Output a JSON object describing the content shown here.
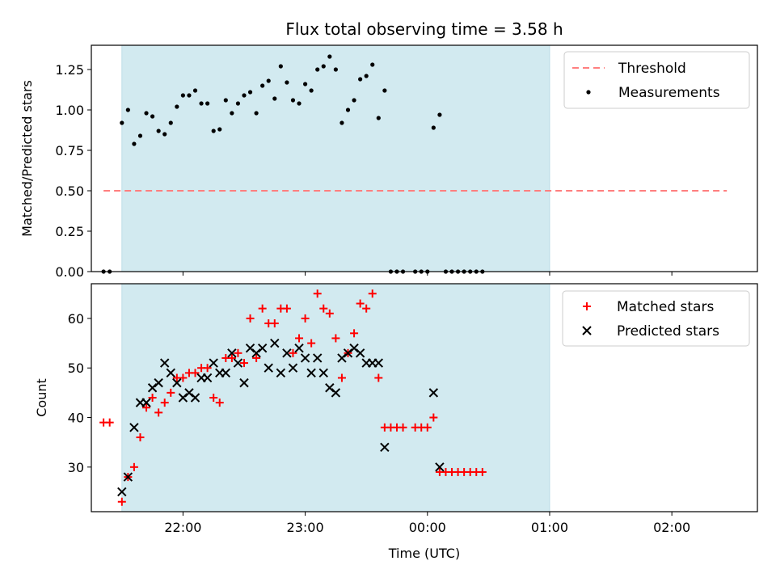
{
  "title": "Flux total observing time = 3.58 h",
  "colors": {
    "shade": "#d2eaf0",
    "threshold": "#ff7f7f",
    "measurement": "#000000",
    "matched": "#ff0000",
    "predicted": "#000000"
  },
  "chart_data": [
    {
      "type": "scatter",
      "panel": "top",
      "title": "Flux total observing time = 3.58 h",
      "xlabel": "",
      "ylabel": "Matched/Predicted stars",
      "x_unit": "time (UTC)",
      "xlim": [
        "21:15",
        "02:42"
      ],
      "ylim": [
        0,
        1.4
      ],
      "xticks": [
        "22:00",
        "23:00",
        "00:00",
        "01:00",
        "02:00"
      ],
      "yticks": [
        "0.00",
        "0.25",
        "0.50",
        "0.75",
        "1.00",
        "1.25"
      ],
      "shaded_interval": [
        "21:30",
        "01:00"
      ],
      "legend_position": "top-right",
      "threshold": {
        "name": "Threshold",
        "value": 0.5,
        "x": [
          "21:21",
          "02:27"
        ]
      },
      "series": [
        {
          "name": "Measurements",
          "points": [
            [
              "21:21",
              0
            ],
            [
              "21:24",
              0
            ],
            [
              "21:30",
              0.92
            ],
            [
              "21:33",
              1.0
            ],
            [
              "21:36",
              0.79
            ],
            [
              "21:39",
              0.84
            ],
            [
              "21:42",
              0.98
            ],
            [
              "21:45",
              0.96
            ],
            [
              "21:48",
              0.87
            ],
            [
              "21:51",
              0.85
            ],
            [
              "21:54",
              0.92
            ],
            [
              "21:57",
              1.02
            ],
            [
              "22:00",
              1.09
            ],
            [
              "22:03",
              1.09
            ],
            [
              "22:06",
              1.12
            ],
            [
              "22:09",
              1.04
            ],
            [
              "22:12",
              1.04
            ],
            [
              "22:15",
              0.87
            ],
            [
              "22:18",
              0.88
            ],
            [
              "22:21",
              1.06
            ],
            [
              "22:24",
              0.98
            ],
            [
              "22:27",
              1.04
            ],
            [
              "22:30",
              1.09
            ],
            [
              "22:33",
              1.11
            ],
            [
              "22:36",
              0.98
            ],
            [
              "22:39",
              1.15
            ],
            [
              "22:42",
              1.18
            ],
            [
              "22:45",
              1.07
            ],
            [
              "22:48",
              1.27
            ],
            [
              "22:51",
              1.17
            ],
            [
              "22:54",
              1.06
            ],
            [
              "22:57",
              1.04
            ],
            [
              "23:00",
              1.16
            ],
            [
              "23:03",
              1.12
            ],
            [
              "23:06",
              1.25
            ],
            [
              "23:09",
              1.27
            ],
            [
              "23:12",
              1.33
            ],
            [
              "23:15",
              1.25
            ],
            [
              "23:18",
              0.92
            ],
            [
              "23:21",
              1.0
            ],
            [
              "23:24",
              1.06
            ],
            [
              "23:27",
              1.19
            ],
            [
              "23:30",
              1.21
            ],
            [
              "23:33",
              1.28
            ],
            [
              "23:36",
              0.95
            ],
            [
              "23:39",
              1.12
            ],
            [
              "23:42",
              0
            ],
            [
              "23:45",
              0
            ],
            [
              "23:48",
              0
            ],
            [
              "23:54",
              0
            ],
            [
              "23:57",
              0
            ],
            [
              "00:00",
              0
            ],
            [
              "00:03",
              0.89
            ],
            [
              "00:06",
              0.97
            ],
            [
              "00:09",
              0
            ],
            [
              "00:12",
              0
            ],
            [
              "00:15",
              0
            ],
            [
              "00:18",
              0
            ],
            [
              "00:21",
              0
            ],
            [
              "00:24",
              0
            ],
            [
              "00:27",
              0
            ]
          ]
        }
      ]
    },
    {
      "type": "scatter",
      "panel": "bottom",
      "xlabel": "Time (UTC)",
      "ylabel": "Count",
      "xlim": [
        "21:15",
        "02:42"
      ],
      "ylim": [
        21,
        67
      ],
      "xticks": [
        "22:00",
        "23:00",
        "00:00",
        "01:00",
        "02:00"
      ],
      "yticks": [
        "30",
        "40",
        "50",
        "60"
      ],
      "shaded_interval": [
        "21:30",
        "01:00"
      ],
      "legend_position": "top-right",
      "series": [
        {
          "name": "Matched stars",
          "marker": "+",
          "points": [
            [
              "21:21",
              39
            ],
            [
              "21:24",
              39
            ],
            [
              "21:30",
              23
            ],
            [
              "21:33",
              28
            ],
            [
              "21:36",
              30
            ],
            [
              "21:39",
              36
            ],
            [
              "21:42",
              42
            ],
            [
              "21:45",
              44
            ],
            [
              "21:48",
              41
            ],
            [
              "21:51",
              43
            ],
            [
              "21:54",
              45
            ],
            [
              "21:57",
              48
            ],
            [
              "22:00",
              48
            ],
            [
              "22:03",
              49
            ],
            [
              "22:06",
              49
            ],
            [
              "22:09",
              50
            ],
            [
              "22:12",
              50
            ],
            [
              "22:15",
              44
            ],
            [
              "22:18",
              43
            ],
            [
              "22:21",
              52
            ],
            [
              "22:24",
              52
            ],
            [
              "22:27",
              53
            ],
            [
              "22:30",
              51
            ],
            [
              "22:33",
              60
            ],
            [
              "22:36",
              52
            ],
            [
              "22:39",
              62
            ],
            [
              "22:42",
              59
            ],
            [
              "22:45",
              59
            ],
            [
              "22:48",
              62
            ],
            [
              "22:51",
              62
            ],
            [
              "22:54",
              53
            ],
            [
              "22:57",
              56
            ],
            [
              "23:00",
              60
            ],
            [
              "23:03",
              55
            ],
            [
              "23:06",
              65
            ],
            [
              "23:09",
              62
            ],
            [
              "23:12",
              61
            ],
            [
              "23:15",
              56
            ],
            [
              "23:18",
              48
            ],
            [
              "23:21",
              53
            ],
            [
              "23:24",
              57
            ],
            [
              "23:27",
              63
            ],
            [
              "23:30",
              62
            ],
            [
              "23:33",
              65
            ],
            [
              "23:36",
              48
            ],
            [
              "23:39",
              38
            ],
            [
              "23:42",
              38
            ],
            [
              "23:45",
              38
            ],
            [
              "23:48",
              38
            ],
            [
              "23:54",
              38
            ],
            [
              "23:57",
              38
            ],
            [
              "00:00",
              38
            ],
            [
              "00:03",
              40
            ],
            [
              "00:06",
              29
            ],
            [
              "00:09",
              29
            ],
            [
              "00:12",
              29
            ],
            [
              "00:15",
              29
            ],
            [
              "00:18",
              29
            ],
            [
              "00:21",
              29
            ],
            [
              "00:24",
              29
            ],
            [
              "00:27",
              29
            ]
          ]
        },
        {
          "name": "Predicted stars",
          "marker": "x",
          "points": [
            [
              "21:30",
              25
            ],
            [
              "21:33",
              28
            ],
            [
              "21:36",
              38
            ],
            [
              "21:39",
              43
            ],
            [
              "21:42",
              43
            ],
            [
              "21:45",
              46
            ],
            [
              "21:48",
              47
            ],
            [
              "21:51",
              51
            ],
            [
              "21:54",
              49
            ],
            [
              "21:57",
              47
            ],
            [
              "22:00",
              44
            ],
            [
              "22:03",
              45
            ],
            [
              "22:06",
              44
            ],
            [
              "22:09",
              48
            ],
            [
              "22:12",
              48
            ],
            [
              "22:15",
              51
            ],
            [
              "22:18",
              49
            ],
            [
              "22:21",
              49
            ],
            [
              "22:24",
              53
            ],
            [
              "22:27",
              51
            ],
            [
              "22:30",
              47
            ],
            [
              "22:33",
              54
            ],
            [
              "22:36",
              53
            ],
            [
              "22:39",
              54
            ],
            [
              "22:42",
              50
            ],
            [
              "22:45",
              55
            ],
            [
              "22:48",
              49
            ],
            [
              "22:51",
              53
            ],
            [
              "22:54",
              50
            ],
            [
              "22:57",
              54
            ],
            [
              "23:00",
              52
            ],
            [
              "23:03",
              49
            ],
            [
              "23:06",
              52
            ],
            [
              "23:09",
              49
            ],
            [
              "23:12",
              46
            ],
            [
              "23:15",
              45
            ],
            [
              "23:18",
              52
            ],
            [
              "23:21",
              53
            ],
            [
              "23:24",
              54
            ],
            [
              "23:27",
              53
            ],
            [
              "23:30",
              51
            ],
            [
              "23:33",
              51
            ],
            [
              "23:36",
              51
            ],
            [
              "23:39",
              34
            ],
            [
              "00:03",
              45
            ],
            [
              "00:06",
              30
            ]
          ]
        }
      ]
    }
  ]
}
